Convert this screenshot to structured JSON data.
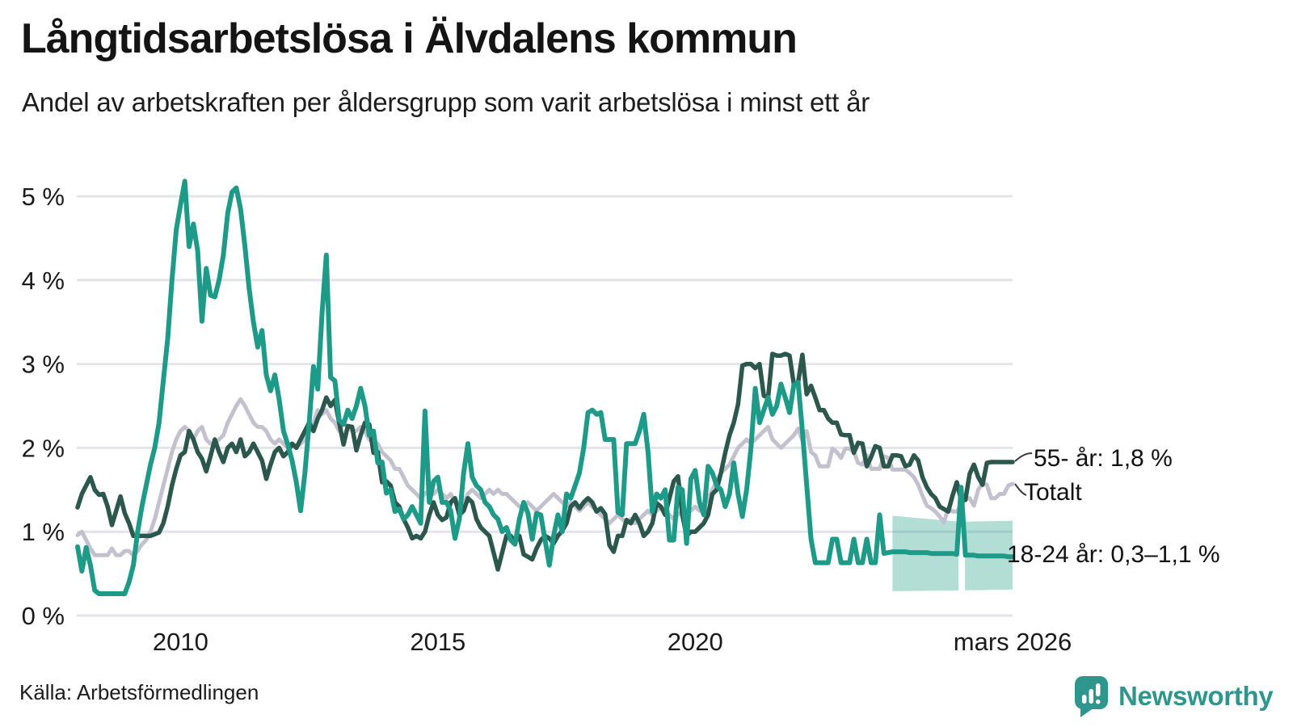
{
  "title": "Långtidsarbetslösa i Älvdalens kommun",
  "subtitle": "Andel av arbetskraften per åldersgrupp som varit arbetslösa i minst ett år",
  "source": "Källa: Arbetsförmedlingen",
  "logo": {
    "text": "Newsworthy",
    "icon": "newsworthy-bubble-chart-icon",
    "color": "#2F968D"
  },
  "colors": {
    "series_18_24": "#1E9A89",
    "series_55": "#2B574D",
    "series_totalt": "#C4C1CF",
    "band_fill": "#35A893",
    "gridline": "#E4E4E8",
    "axis_text": "#1A1A1A",
    "connector": "#3A3A3A"
  },
  "chart_data": {
    "type": "line",
    "title": "Långtidsarbetslösa i Älvdalens kommun",
    "subtitle": "Andel av arbetskraften per åldersgrupp som varit arbetslösa i minst ett år",
    "x_start": "2008-01",
    "x_end": "2026-03",
    "x_interval": "monthly",
    "grid": true,
    "ylim": [
      0,
      5.5
    ],
    "y_ticks": [
      {
        "value": 0,
        "label": "0 %"
      },
      {
        "value": 1,
        "label": "1 %"
      },
      {
        "value": 2,
        "label": "2 %"
      },
      {
        "value": 3,
        "label": "3 %"
      },
      {
        "value": 4,
        "label": "4 %"
      },
      {
        "value": 5,
        "label": "5 %"
      }
    ],
    "x_ticks": [
      {
        "index": 24,
        "label": "2010"
      },
      {
        "index": 84,
        "label": "2015"
      },
      {
        "index": 144,
        "label": "2020"
      },
      {
        "index": 218,
        "label": "mars 2026"
      }
    ],
    "series": [
      {
        "name": "Totalt",
        "label": "Totalt",
        "color": "#C4C1CF",
        "values": [
          0.96,
          1.0,
          0.9,
          0.8,
          0.72,
          0.72,
          0.72,
          0.72,
          0.8,
          0.72,
          0.72,
          0.77,
          0.77,
          0.72,
          0.77,
          0.85,
          0.9,
          1.0,
          1.15,
          1.35,
          1.55,
          1.75,
          1.95,
          2.1,
          2.2,
          2.25,
          2.2,
          2.1,
          2.2,
          2.25,
          2.1,
          2.05,
          2.05,
          2.1,
          2.15,
          2.3,
          2.4,
          2.5,
          2.58,
          2.5,
          2.4,
          2.3,
          2.25,
          2.25,
          2.2,
          2.1,
          2.05,
          2.1,
          2.05,
          2.0,
          2.05,
          2.0,
          2.05,
          2.1,
          2.2,
          2.3,
          2.45,
          2.4,
          2.45,
          2.35,
          2.3,
          2.2,
          2.3,
          2.25,
          2.2,
          2.2,
          2.25,
          2.2,
          2.1,
          2.05,
          2.05,
          1.95,
          1.9,
          1.85,
          1.75,
          1.75,
          1.65,
          1.55,
          1.5,
          1.45,
          1.4,
          1.45,
          1.5,
          1.45,
          1.5,
          1.45,
          1.4,
          1.45,
          1.35,
          1.3,
          1.35,
          1.45,
          1.5,
          1.45,
          1.4,
          1.45,
          1.5,
          1.45,
          1.5,
          1.45,
          1.45,
          1.4,
          1.35,
          1.3,
          1.3,
          1.35,
          1.3,
          1.25,
          1.3,
          1.35,
          1.4,
          1.45,
          1.4,
          1.35,
          1.3,
          1.35,
          1.3,
          1.25,
          1.3,
          1.35,
          1.3,
          1.25,
          1.2,
          1.15,
          1.1,
          1.15,
          1.2,
          1.15,
          1.1,
          1.15,
          1.1,
          1.15,
          1.2,
          1.25,
          1.2,
          1.25,
          1.3,
          1.25,
          1.2,
          1.15,
          1.2,
          1.25,
          1.2,
          1.25,
          1.3,
          1.25,
          1.3,
          1.4,
          1.5,
          1.6,
          1.7,
          1.75,
          1.8,
          1.9,
          2.0,
          2.05,
          2.1,
          2.05,
          2.1,
          2.15,
          2.2,
          2.25,
          2.1,
          2.05,
          2.0,
          2.05,
          2.1,
          2.15,
          2.23,
          2.09,
          2.2,
          1.95,
          1.91,
          1.78,
          1.78,
          1.78,
          1.99,
          1.95,
          1.88,
          1.99,
          1.99,
          1.95,
          1.82,
          1.8,
          1.91,
          1.75,
          1.75,
          1.75,
          1.9,
          1.88,
          1.74,
          1.74,
          1.74,
          1.74,
          1.7,
          1.65,
          1.56,
          1.43,
          1.31,
          1.28,
          1.24,
          1.18,
          1.11,
          1.28,
          1.24,
          1.24,
          1.31,
          1.39,
          1.4,
          1.31,
          1.5,
          1.58,
          1.56,
          1.4,
          1.4,
          1.45,
          1.45,
          1.55,
          1.57
        ]
      },
      {
        "name": "55- år",
        "label": "55- år: 1,8 %",
        "color": "#2B574D",
        "values": [
          1.29,
          1.45,
          1.55,
          1.65,
          1.5,
          1.44,
          1.45,
          1.3,
          1.08,
          1.25,
          1.42,
          1.22,
          1.1,
          0.95,
          0.95,
          0.95,
          0.95,
          0.95,
          0.97,
          0.99,
          1.1,
          1.3,
          1.55,
          1.75,
          1.91,
          1.95,
          2.2,
          2.1,
          1.95,
          1.87,
          1.72,
          1.9,
          2.1,
          1.95,
          1.83,
          2.0,
          2.05,
          1.95,
          2.1,
          1.9,
          1.95,
          2.05,
          1.95,
          1.85,
          1.63,
          1.8,
          1.95,
          2.0,
          1.9,
          1.95,
          2.05,
          2.0,
          2.1,
          2.2,
          2.3,
          2.2,
          2.35,
          2.45,
          2.6,
          2.5,
          2.57,
          2.3,
          2.04,
          2.26,
          2.25,
          1.97,
          2.15,
          2.3,
          2.28,
          1.94,
          1.95,
          1.59,
          1.6,
          1.55,
          1.35,
          1.3,
          1.15,
          1.05,
          0.92,
          0.95,
          0.92,
          1.0,
          1.2,
          1.35,
          1.2,
          1.14,
          1.17,
          1.35,
          1.4,
          1.2,
          1.25,
          1.4,
          1.35,
          1.15,
          1.05,
          1.0,
          0.95,
          0.75,
          0.55,
          0.75,
          0.95,
          0.95,
          0.88,
          0.95,
          0.73,
          0.7,
          0.67,
          0.8,
          0.9,
          0.95,
          0.92,
          0.86,
          0.95,
          1.01,
          1.1,
          1.3,
          1.35,
          1.28,
          1.35,
          1.4,
          1.35,
          1.24,
          1.28,
          1.21,
          0.84,
          0.76,
          0.95,
          0.95,
          1.14,
          1.1,
          1.2,
          1.1,
          0.95,
          1.0,
          1.1,
          1.34,
          1.3,
          1.2,
          1.4,
          1.6,
          1.66,
          1.2,
          0.95,
          1.0,
          1.0,
          1.05,
          1.1,
          1.2,
          1.45,
          1.5,
          1.7,
          1.94,
          2.15,
          2.3,
          2.52,
          2.98,
          3.0,
          3.0,
          2.95,
          3.0,
          2.62,
          2.6,
          3.12,
          3.1,
          3.1,
          3.12,
          3.1,
          2.76,
          2.78,
          3.11,
          2.64,
          2.74,
          2.6,
          2.45,
          2.45,
          2.35,
          2.3,
          2.3,
          2.16,
          2.15,
          2.15,
          1.94,
          2.06,
          2.05,
          1.78,
          1.89,
          2.02,
          2.0,
          1.78,
          1.78,
          1.91,
          1.91,
          1.9,
          1.78,
          1.8,
          1.91,
          1.85,
          1.65,
          1.53,
          1.45,
          1.4,
          1.3,
          1.27,
          1.24,
          1.43,
          1.59,
          1.38,
          1.38,
          1.69,
          1.8,
          1.65,
          1.56,
          1.82,
          1.83,
          1.83,
          1.83,
          1.83,
          1.83,
          1.83
        ]
      },
      {
        "name": "18-24 år",
        "label": "18-24 år: 0,3–1,1 %",
        "color": "#1E9A89",
        "values": [
          0.82,
          0.53,
          0.81,
          0.6,
          0.3,
          0.26,
          0.26,
          0.26,
          0.26,
          0.26,
          0.26,
          0.26,
          0.4,
          0.6,
          1.0,
          1.3,
          1.55,
          1.8,
          2.0,
          2.3,
          2.8,
          3.3,
          4.0,
          4.6,
          4.9,
          5.18,
          4.4,
          4.67,
          4.35,
          3.51,
          4.14,
          3.82,
          3.8,
          4.0,
          4.3,
          4.8,
          5.05,
          5.1,
          4.85,
          4.41,
          3.9,
          3.5,
          3.2,
          3.4,
          2.87,
          2.68,
          2.87,
          2.58,
          2.2,
          2.04,
          1.85,
          1.59,
          1.25,
          1.7,
          2.3,
          2.97,
          2.7,
          3.6,
          4.3,
          2.84,
          2.8,
          2.33,
          2.28,
          2.45,
          2.35,
          2.5,
          2.71,
          2.5,
          2.15,
          2.2,
          1.82,
          1.83,
          1.46,
          1.5,
          1.24,
          1.27,
          1.15,
          1.2,
          1.3,
          1.2,
          1.1,
          2.44,
          1.35,
          1.6,
          1.65,
          1.35,
          1.35,
          1.25,
          0.92,
          1.15,
          1.7,
          2.05,
          1.65,
          1.55,
          1.5,
          1.35,
          1.3,
          1.2,
          1.15,
          1.0,
          1.05,
          0.9,
          0.85,
          1.15,
          1.35,
          1.22,
          0.91,
          1.22,
          1.2,
          0.9,
          0.6,
          0.95,
          1.2,
          1.0,
          1.45,
          1.4,
          1.55,
          1.7,
          2.0,
          2.42,
          2.45,
          2.4,
          2.42,
          2.1,
          2.1,
          2.1,
          1.23,
          1.2,
          2.05,
          2.05,
          2.05,
          2.2,
          2.4,
          1.95,
          1.24,
          1.45,
          1.4,
          1.5,
          0.9,
          0.9,
          1.53,
          1.5,
          0.86,
          1.63,
          1.73,
          1.35,
          1.2,
          1.78,
          1.7,
          1.55,
          1.5,
          1.3,
          1.45,
          1.82,
          1.45,
          1.18,
          1.5,
          2.0,
          2.71,
          2.3,
          2.45,
          2.6,
          2.4,
          2.5,
          2.76,
          2.6,
          2.42,
          2.75,
          2.78,
          2.2,
          1.56,
          0.91,
          0.63,
          0.63,
          0.63,
          0.63,
          0.91,
          0.91,
          0.63,
          0.63,
          0.63,
          0.91,
          0.63,
          0.63,
          0.91,
          0.63,
          0.63,
          1.2,
          0.74,
          0.75,
          0.76,
          0.76,
          0.76,
          0.76,
          0.75,
          0.75,
          0.75,
          0.75,
          0.75,
          0.74,
          0.74,
          0.74,
          0.74,
          0.74,
          0.74,
          0.73,
          1.53,
          0.72,
          0.72,
          0.72,
          0.71,
          0.71,
          0.71,
          0.71,
          0.71,
          0.71,
          0.71,
          0.7,
          0.7
        ],
        "band": {
          "label_range": "0,3–1,1 %",
          "fill": "#35A893",
          "opacity": 0.38,
          "segments": [
            {
              "from_index": 190,
              "to_index": 205.4,
              "hi": [
                1.19,
                1.12
              ],
              "lo": [
                0.29,
                0.3
              ]
            },
            {
              "from_index": 206.9,
              "to_index": 218,
              "hi": [
                1.12,
                1.13
              ],
              "lo": [
                0.3,
                0.31
              ]
            }
          ]
        }
      }
    ],
    "annotations": [
      {
        "series": "55- år",
        "text": "55- år: 1,8 %"
      },
      {
        "series": "Totalt",
        "text": "Totalt"
      },
      {
        "series": "18-24 år",
        "text": "18-24 år: 0,3–1,1 %"
      }
    ]
  }
}
